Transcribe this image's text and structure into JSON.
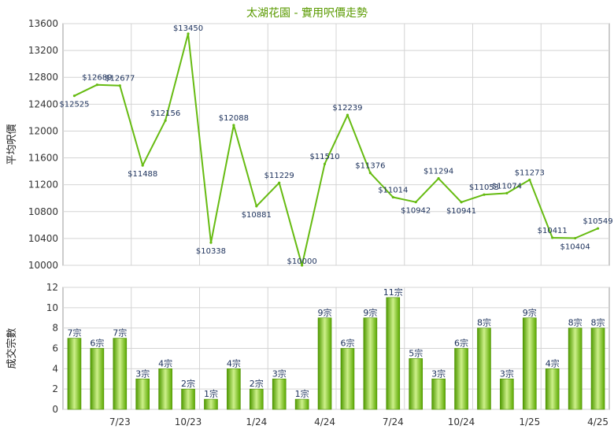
{
  "chart_data": [
    {
      "type": "line",
      "title": "太湖花園 - 實用呎價走勢",
      "ylabel": "平均呎價",
      "ylim": [
        10000,
        13600
      ],
      "yticks": [
        10000,
        10400,
        10800,
        11200,
        11600,
        12000,
        12400,
        12800,
        13200,
        13600
      ],
      "grid": true,
      "color": "#66bb11",
      "points": [
        {
          "value": 12525,
          "label": "$12525"
        },
        {
          "value": 12689,
          "label": "$12689"
        },
        {
          "value": 12677,
          "label": "$12677"
        },
        {
          "value": 11488,
          "label": "$11488"
        },
        {
          "value": 12156,
          "label": "$12156"
        },
        {
          "value": 13450,
          "label": "$13450"
        },
        {
          "value": 10338,
          "label": "$10338"
        },
        {
          "value": 12088,
          "label": "$12088"
        },
        {
          "value": 10881,
          "label": "$10881"
        },
        {
          "value": 11229,
          "label": "$11229"
        },
        {
          "value": 10000,
          "label": "$10000"
        },
        {
          "value": 11510,
          "label": "$11510"
        },
        {
          "value": 12239,
          "label": "$12239"
        },
        {
          "value": 11376,
          "label": "$11376"
        },
        {
          "value": 11014,
          "label": "$11014"
        },
        {
          "value": 10942,
          "label": "$10942"
        },
        {
          "value": 11294,
          "label": "$11294"
        },
        {
          "value": 10941,
          "label": "$10941"
        },
        {
          "value": 11053,
          "label": "$11053"
        },
        {
          "value": 11074,
          "label": "$11074"
        },
        {
          "value": 11273,
          "label": "$11273"
        },
        {
          "value": 10411,
          "label": "$10411"
        },
        {
          "value": 10404,
          "label": "$10404"
        },
        {
          "value": 10549,
          "label": "$10549"
        }
      ]
    },
    {
      "type": "bar",
      "ylabel": "成交宗數",
      "ylim": [
        0,
        12
      ],
      "yticks": [
        0,
        2,
        4,
        6,
        8,
        10,
        12
      ],
      "grid": true,
      "color": "#66bb11",
      "xtick_labels": [
        {
          "index": 2,
          "label": "7/23"
        },
        {
          "index": 5,
          "label": "10/23"
        },
        {
          "index": 8,
          "label": "1/24"
        },
        {
          "index": 11,
          "label": "4/24"
        },
        {
          "index": 14,
          "label": "7/24"
        },
        {
          "index": 17,
          "label": "10/24"
        },
        {
          "index": 20,
          "label": "1/25"
        },
        {
          "index": 23,
          "label": "4/25"
        }
      ],
      "bars": [
        {
          "value": 7,
          "label": "7宗"
        },
        {
          "value": 6,
          "label": "6宗"
        },
        {
          "value": 7,
          "label": "7宗"
        },
        {
          "value": 3,
          "label": "3宗"
        },
        {
          "value": 4,
          "label": "4宗"
        },
        {
          "value": 2,
          "label": "2宗"
        },
        {
          "value": 1,
          "label": "1宗"
        },
        {
          "value": 4,
          "label": "4宗"
        },
        {
          "value": 2,
          "label": "2宗"
        },
        {
          "value": 3,
          "label": "3宗"
        },
        {
          "value": 1,
          "label": "1宗"
        },
        {
          "value": 9,
          "label": "9宗"
        },
        {
          "value": 6,
          "label": "6宗"
        },
        {
          "value": 9,
          "label": "9宗"
        },
        {
          "value": 11,
          "label": "11宗"
        },
        {
          "value": 5,
          "label": "5宗"
        },
        {
          "value": 3,
          "label": "3宗"
        },
        {
          "value": 6,
          "label": "6宗"
        },
        {
          "value": 8,
          "label": "8宗"
        },
        {
          "value": 3,
          "label": "3宗"
        },
        {
          "value": 9,
          "label": "9宗"
        },
        {
          "value": 4,
          "label": "4宗"
        },
        {
          "value": 8,
          "label": "8宗"
        },
        {
          "value": 8,
          "label": "8宗"
        }
      ]
    }
  ]
}
